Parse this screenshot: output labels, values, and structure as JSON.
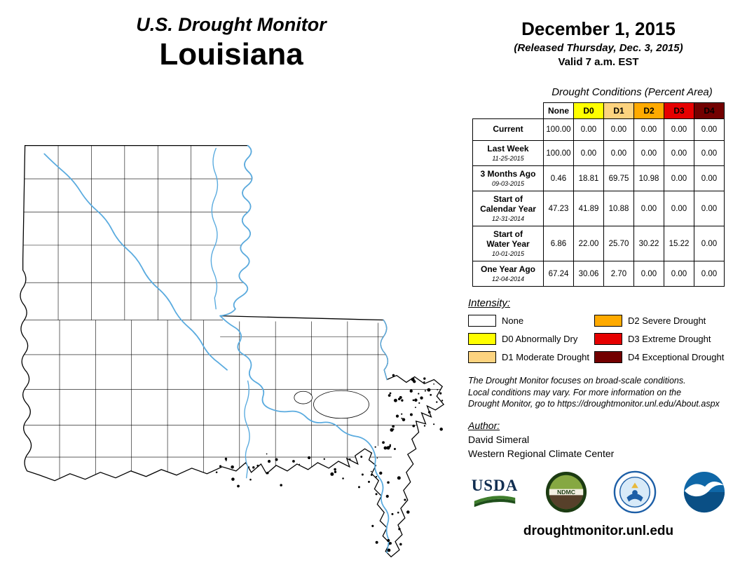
{
  "header": {
    "title": "U.S. Drought Monitor",
    "state": "Louisiana"
  },
  "date_block": {
    "date": "December 1, 2015",
    "released": "(Released Thursday, Dec. 3, 2015)",
    "valid": "Valid 7 a.m. EST"
  },
  "table": {
    "caption": "Drought Conditions (Percent Area)",
    "columns": [
      {
        "label": "None",
        "color": "#FFFFFF"
      },
      {
        "label": "D0",
        "color": "#FFFF00"
      },
      {
        "label": "D1",
        "color": "#FCD37F"
      },
      {
        "label": "D2",
        "color": "#FFAA00"
      },
      {
        "label": "D3",
        "color": "#E60000"
      },
      {
        "label": "D4",
        "color": "#730000"
      }
    ],
    "rows": [
      {
        "label": "Current",
        "date": "",
        "values": [
          "100.00",
          "0.00",
          "0.00",
          "0.00",
          "0.00",
          "0.00"
        ]
      },
      {
        "label": "Last Week",
        "date": "11-25-2015",
        "values": [
          "100.00",
          "0.00",
          "0.00",
          "0.00",
          "0.00",
          "0.00"
        ]
      },
      {
        "label": "3 Months Ago",
        "date": "09-03-2015",
        "values": [
          "0.46",
          "18.81",
          "69.75",
          "10.98",
          "0.00",
          "0.00"
        ]
      },
      {
        "label": "Start of\nCalendar Year",
        "date": "12-31-2014",
        "values": [
          "47.23",
          "41.89",
          "10.88",
          "0.00",
          "0.00",
          "0.00"
        ]
      },
      {
        "label": "Start of\nWater Year",
        "date": "10-01-2015",
        "values": [
          "6.86",
          "22.00",
          "25.70",
          "30.22",
          "15.22",
          "0.00"
        ]
      },
      {
        "label": "One Year Ago",
        "date": "12-04-2014",
        "values": [
          "67.24",
          "30.06",
          "2.70",
          "0.00",
          "0.00",
          "0.00"
        ]
      }
    ]
  },
  "chart_data": {
    "type": "table",
    "title": "Drought Conditions (Percent Area)",
    "columns": [
      "None",
      "D0",
      "D1",
      "D2",
      "D3",
      "D4"
    ],
    "rows": [
      {
        "label": "Current",
        "values": [
          100.0,
          0.0,
          0.0,
          0.0,
          0.0,
          0.0
        ]
      },
      {
        "label": "Last Week 11-25-2015",
        "values": [
          100.0,
          0.0,
          0.0,
          0.0,
          0.0,
          0.0
        ]
      },
      {
        "label": "3 Months Ago 09-03-2015",
        "values": [
          0.46,
          18.81,
          69.75,
          10.98,
          0.0,
          0.0
        ]
      },
      {
        "label": "Start of Calendar Year 12-31-2014",
        "values": [
          47.23,
          41.89,
          10.88,
          0.0,
          0.0,
          0.0
        ]
      },
      {
        "label": "Start of Water Year 10-01-2015",
        "values": [
          6.86,
          22.0,
          25.7,
          30.22,
          15.22,
          0.0
        ]
      },
      {
        "label": "One Year Ago 12-04-2014",
        "values": [
          67.24,
          30.06,
          2.7,
          0.0,
          0.0,
          0.0
        ]
      }
    ]
  },
  "legend": {
    "title": "Intensity:",
    "items": [
      {
        "label": "None",
        "color": "#FFFFFF"
      },
      {
        "label": "D0 Abnormally Dry",
        "color": "#FFFF00"
      },
      {
        "label": "D1 Moderate Drought",
        "color": "#FCD37F"
      },
      {
        "label": "D2 Severe Drought",
        "color": "#FFAA00"
      },
      {
        "label": "D3 Extreme Drought",
        "color": "#E60000"
      },
      {
        "label": "D4 Exceptional Drought",
        "color": "#730000"
      }
    ]
  },
  "notes": {
    "line1": "The Drought Monitor focuses on broad-scale conditions.",
    "line2": "Local conditions may vary. For more information on the",
    "line3": "Drought Monitor, go to https://droughtmonitor.unl.edu/About.aspx"
  },
  "author": {
    "heading": "Author:",
    "name": "David Simeral",
    "organization": "Western Regional Climate Center"
  },
  "logos": {
    "usda_label": "USDA",
    "ndmc_label": "NDMC"
  },
  "footer": {
    "url": "droughtmonitor.unl.edu"
  },
  "map": {
    "state_name": "Louisiana",
    "state_fill": "#FFFFFF",
    "boundary_color": "#000000",
    "river_color": "#5AABDF"
  }
}
